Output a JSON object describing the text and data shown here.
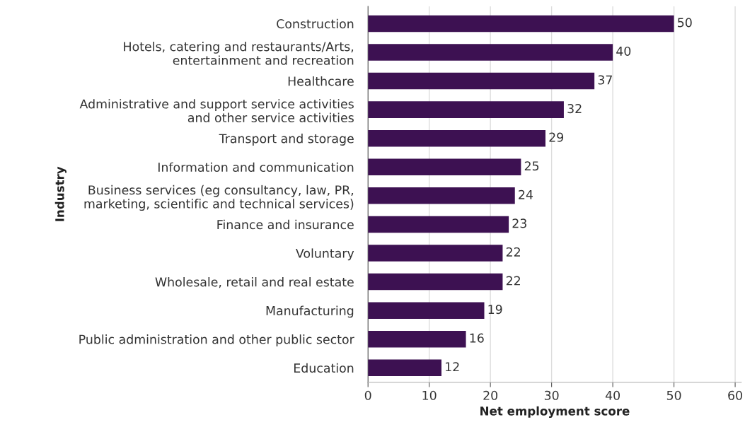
{
  "chart_data": {
    "type": "bar",
    "orientation": "horizontal",
    "xlabel": "Net employment score",
    "ylabel": "Industry",
    "categories": [
      "Construction",
      "Hotels, catering and restaurants/Arts,\nentertainment and recreation",
      "Healthcare",
      "Administrative and support service activities\nand other service activities",
      "Transport and storage",
      "Information and communication",
      "Business services (eg consultancy, law, PR,\nmarketing, scientific and technical services)",
      "Finance and insurance",
      "Voluntary",
      "Wholesale, retail and real estate",
      "Manufacturing",
      "Public administration and other public sector",
      "Education"
    ],
    "values": [
      50,
      40,
      37,
      32,
      29,
      25,
      24,
      23,
      22,
      22,
      19,
      16,
      12
    ],
    "color": "#3d1152",
    "data_labels": true,
    "xlim": [
      0,
      61
    ],
    "xticks": [
      0,
      10,
      20,
      30,
      40,
      50,
      60
    ],
    "grid": "x",
    "legend": false
  }
}
